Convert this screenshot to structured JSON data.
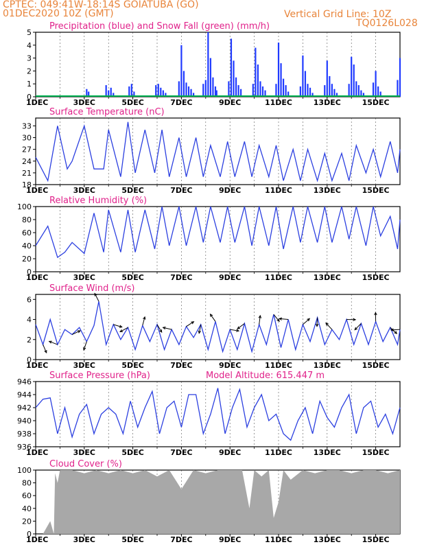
{
  "header": {
    "station": "CPTEC:   049:41W-18:14S   GOIATUBA (GO)",
    "date": "01DEC2020 10Z (GMT)",
    "grid_note": "Vertical Grid Line: 10Z",
    "code": "TQ0126L028"
  },
  "colors": {
    "precip": "#1f3aff",
    "snow": "#00b050",
    "line": "#2b3fe0",
    "arrows": "#000000",
    "cloud": "#a8a8a8",
    "titles": "#e0218a",
    "header": "#e8843a"
  },
  "x_axis": {
    "days": 15,
    "ticks": [
      {
        "day": 0,
        "label": "1DEC"
      },
      {
        "day": 2,
        "label": "3DEC"
      },
      {
        "day": 4,
        "label": "5DEC"
      },
      {
        "day": 6,
        "label": "7DEC"
      },
      {
        "day": 8,
        "label": "9DEC"
      },
      {
        "day": 10,
        "label": "11DEC"
      },
      {
        "day": 12,
        "label": "13DEC"
      },
      {
        "day": 14,
        "label": "15DEC"
      }
    ]
  },
  "chart_data": [
    {
      "id": "precip",
      "type": "bar",
      "title": "Precipitation (blue) and Snow Fall (green) (mm/h)",
      "ylim": [
        0,
        5
      ],
      "yticks": [
        0,
        1,
        2,
        3,
        4,
        5
      ],
      "series": [
        {
          "name": "Precipitation",
          "x_days": [
            2.1,
            2.18,
            2.9,
            3.0,
            3.1,
            3.2,
            3.85,
            3.95,
            4.05,
            4.95,
            5.05,
            5.15,
            5.25,
            5.35,
            5.9,
            6.0,
            6.1,
            6.2,
            6.3,
            6.4,
            6.5,
            6.9,
            7.0,
            7.1,
            7.2,
            7.3,
            7.4,
            7.45,
            7.95,
            8.05,
            8.15,
            8.25,
            8.35,
            8.45,
            8.95,
            9.05,
            9.15,
            9.25,
            9.35,
            9.45,
            9.9,
            10.0,
            10.1,
            10.2,
            10.3,
            10.4,
            10.9,
            11.0,
            11.1,
            11.2,
            11.3,
            11.4,
            11.9,
            12.0,
            12.1,
            12.2,
            12.3,
            12.4,
            12.9,
            13.0,
            13.1,
            13.2,
            13.3,
            13.4,
            13.5,
            13.9,
            14.0,
            14.1,
            14.2,
            14.9,
            15.0
          ],
          "values": [
            0.6,
            0.4,
            0.9,
            0.5,
            0.7,
            0.3,
            0.8,
            1.0,
            0.4,
            0.9,
            1.0,
            0.7,
            0.5,
            0.3,
            1.2,
            4.0,
            2.0,
            1.1,
            0.8,
            0.6,
            0.3,
            1.0,
            1.3,
            5.0,
            3.0,
            1.5,
            0.8,
            0.5,
            1.2,
            4.5,
            2.8,
            1.5,
            0.9,
            0.6,
            1.0,
            3.8,
            2.5,
            1.2,
            0.8,
            0.5,
            1.0,
            4.2,
            2.6,
            1.4,
            0.9,
            0.4,
            0.8,
            3.2,
            2.0,
            1.0,
            0.7,
            0.3,
            0.9,
            2.8,
            1.6,
            1.0,
            0.6,
            0.3,
            1.0,
            3.1,
            2.5,
            1.2,
            0.9,
            0.5,
            0.3,
            1.1,
            2.0,
            0.8,
            0.4,
            1.3,
            3.0
          ]
        },
        {
          "name": "Snow Fall",
          "x_days": [
            0.0,
            15.0
          ],
          "values": [
            0.05,
            0.05
          ]
        }
      ]
    },
    {
      "id": "temp",
      "type": "line",
      "title": "Surface Temperature (nC)",
      "ylim": [
        18,
        35
      ],
      "yticks": [
        18,
        21,
        24,
        27,
        30,
        33
      ],
      "series": [
        {
          "name": "Temperature",
          "x_days": [
            0.0,
            0.5,
            0.9,
            1.3,
            1.5,
            2.0,
            2.4,
            2.8,
            3.0,
            3.5,
            3.8,
            4.1,
            4.5,
            4.9,
            5.2,
            5.5,
            5.9,
            6.2,
            6.6,
            6.9,
            7.2,
            7.6,
            7.9,
            8.2,
            8.6,
            8.9,
            9.2,
            9.6,
            9.9,
            10.2,
            10.6,
            10.9,
            11.2,
            11.6,
            11.9,
            12.2,
            12.6,
            12.9,
            13.2,
            13.6,
            13.9,
            14.2,
            14.6,
            14.9,
            15.0
          ],
          "values": [
            25,
            19,
            33,
            22,
            24,
            33,
            22,
            22,
            32,
            20,
            34,
            21,
            32,
            21,
            32,
            20,
            30,
            20,
            30,
            20,
            28,
            20,
            29,
            20,
            29,
            20,
            28,
            20,
            28,
            19,
            27,
            19,
            27,
            19,
            26,
            19,
            26,
            19,
            28,
            21,
            27,
            20,
            29,
            21,
            27
          ]
        }
      ]
    },
    {
      "id": "rh",
      "type": "line",
      "title": "Relative Humidity (%)",
      "ylim": [
        0,
        100
      ],
      "yticks": [
        0,
        20,
        40,
        60,
        80,
        100
      ],
      "series": [
        {
          "name": "Humidity",
          "x_days": [
            0.0,
            0.5,
            0.9,
            1.2,
            1.5,
            2.0,
            2.4,
            2.8,
            3.0,
            3.5,
            3.8,
            4.1,
            4.5,
            4.9,
            5.2,
            5.5,
            5.9,
            6.2,
            6.6,
            6.9,
            7.2,
            7.6,
            7.9,
            8.2,
            8.6,
            8.9,
            9.2,
            9.6,
            9.9,
            10.2,
            10.6,
            10.9,
            11.2,
            11.6,
            11.9,
            12.2,
            12.6,
            12.9,
            13.2,
            13.6,
            13.9,
            14.2,
            14.6,
            14.9,
            15.0
          ],
          "values": [
            40,
            70,
            22,
            30,
            45,
            28,
            90,
            30,
            95,
            30,
            95,
            30,
            95,
            35,
            100,
            40,
            100,
            40,
            100,
            45,
            100,
            45,
            100,
            45,
            100,
            40,
            100,
            40,
            100,
            35,
            100,
            45,
            100,
            45,
            100,
            45,
            100,
            50,
            100,
            40,
            100,
            55,
            85,
            35,
            80
          ]
        }
      ]
    },
    {
      "id": "wind",
      "type": "line",
      "title": "Surface Wind (m/s)",
      "ylim": [
        0,
        6.5
      ],
      "yticks": [
        0,
        2,
        4,
        6
      ],
      "series": [
        {
          "name": "Wind speed",
          "x_days": [
            0.0,
            0.3,
            0.6,
            0.9,
            1.2,
            1.5,
            1.8,
            2.1,
            2.4,
            2.6,
            2.9,
            3.2,
            3.5,
            3.8,
            4.1,
            4.4,
            4.7,
            5.0,
            5.3,
            5.6,
            5.9,
            6.2,
            6.5,
            6.8,
            7.1,
            7.4,
            7.7,
            8.0,
            8.3,
            8.6,
            8.9,
            9.2,
            9.5,
            9.8,
            10.1,
            10.4,
            10.7,
            11.0,
            11.3,
            11.6,
            11.9,
            12.2,
            12.5,
            12.8,
            13.1,
            13.4,
            13.7,
            14.0,
            14.3,
            14.6,
            14.9,
            15.0
          ],
          "values": [
            3.5,
            1.5,
            4.0,
            1.5,
            3.0,
            2.5,
            3.2,
            1.8,
            3.4,
            5.8,
            1.5,
            3.5,
            2.0,
            3.2,
            1.0,
            3.4,
            1.8,
            3.5,
            1.0,
            3.0,
            1.5,
            3.3,
            2.2,
            3.5,
            1.0,
            3.8,
            0.8,
            3.0,
            1.0,
            3.6,
            0.8,
            3.5,
            1.5,
            4.5,
            1.2,
            4.0,
            1.0,
            3.5,
            1.8,
            4.2,
            1.5,
            3.0,
            2.0,
            4.0,
            1.5,
            3.6,
            1.5,
            3.8,
            1.8,
            3.2,
            1.5,
            3.0
          ]
        }
      ]
    },
    {
      "id": "pres",
      "type": "line",
      "title": "Surface Pressure (hPa)",
      "subtitle": "Model Altitude: 615.447 m",
      "ylim": [
        936,
        946
      ],
      "yticks": [
        936,
        938,
        940,
        942,
        944,
        946
      ],
      "series": [
        {
          "name": "Pressure",
          "x_days": [
            0.0,
            0.3,
            0.6,
            0.9,
            1.2,
            1.5,
            1.8,
            2.1,
            2.4,
            2.7,
            3.0,
            3.3,
            3.6,
            3.9,
            4.2,
            4.5,
            4.8,
            5.1,
            5.4,
            5.7,
            6.0,
            6.3,
            6.6,
            6.9,
            7.2,
            7.5,
            7.8,
            8.1,
            8.4,
            8.7,
            9.0,
            9.3,
            9.6,
            9.9,
            10.2,
            10.5,
            10.8,
            11.1,
            11.4,
            11.7,
            12.0,
            12.3,
            12.6,
            12.9,
            13.2,
            13.5,
            13.8,
            14.1,
            14.4,
            14.7,
            15.0
          ],
          "values": [
            942,
            943.3,
            943.5,
            938,
            942,
            937.5,
            941,
            942.5,
            938,
            941,
            942,
            941,
            938,
            943,
            939,
            942,
            944.5,
            938,
            942,
            943,
            939,
            944,
            944,
            938,
            941,
            945,
            938,
            942,
            944.8,
            939,
            942,
            944,
            940,
            941,
            938,
            937,
            940,
            942,
            938,
            943,
            940.5,
            939,
            942,
            944,
            938,
            942,
            943,
            939,
            941,
            938,
            942
          ]
        }
      ]
    },
    {
      "id": "cloud",
      "type": "area",
      "title": "Cloud Cover (%)",
      "ylim": [
        0,
        100
      ],
      "yticks": [
        0,
        20,
        40,
        60,
        80,
        100
      ],
      "series": [
        {
          "name": "Cloud cover",
          "x_days": [
            0.0,
            0.3,
            0.6,
            0.75,
            0.8,
            0.9,
            1.0,
            1.5,
            2.0,
            2.5,
            3.0,
            3.5,
            4.0,
            4.5,
            5.0,
            5.5,
            6.0,
            6.5,
            7.0,
            7.5,
            8.0,
            8.5,
            8.8,
            9.0,
            9.3,
            9.6,
            9.8,
            10.0,
            10.2,
            10.5,
            11.0,
            11.5,
            12.0,
            12.5,
            13.0,
            13.5,
            14.0,
            14.5,
            15.0
          ],
          "values": [
            0,
            0,
            20,
            0,
            95,
            80,
            100,
            100,
            95,
            100,
            95,
            100,
            95,
            100,
            90,
            100,
            70,
            100,
            95,
            100,
            100,
            100,
            40,
            100,
            90,
            100,
            25,
            50,
            100,
            85,
            100,
            95,
            100,
            100,
            95,
            100,
            100,
            95,
            100
          ]
        }
      ]
    }
  ]
}
